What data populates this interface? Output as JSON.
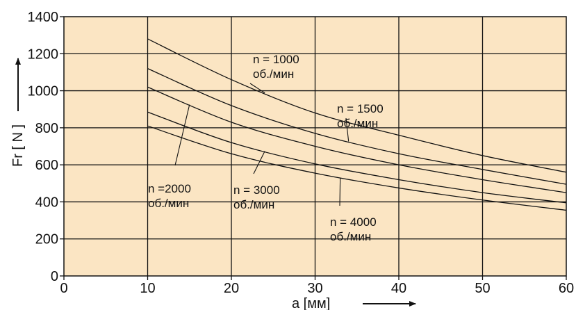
{
  "chart_data": {
    "type": "line",
    "xlabel": "a  [мм]",
    "ylabel": "Fr [ N ]",
    "xlim": [
      0,
      60
    ],
    "ylim": [
      0,
      1400
    ],
    "x_ticks": [
      "0",
      "10",
      "20",
      "30",
      "40",
      "50",
      "60"
    ],
    "y_ticks": [
      "0",
      "200",
      "400",
      "600",
      "800",
      "1000",
      "1200",
      "1400"
    ],
    "grid": true,
    "background_color": "#fbe5c3",
    "line_color": "#111111",
    "series": [
      {
        "name": "n = 1000",
        "x": [
          10,
          20,
          30,
          40,
          50,
          60
        ],
        "y": [
          1280,
          1060,
          880,
          760,
          650,
          560
        ]
      },
      {
        "name": "n = 1500",
        "x": [
          10,
          20,
          30,
          40,
          50,
          60
        ],
        "y": [
          1120,
          920,
          770,
          660,
          575,
          495
        ]
      },
      {
        "name": "n =2000",
        "x": [
          10,
          20,
          30,
          40,
          50,
          60
        ],
        "y": [
          1020,
          830,
          700,
          600,
          520,
          450
        ]
      },
      {
        "name": "n = 3000",
        "x": [
          10,
          20,
          30,
          40,
          50,
          60
        ],
        "y": [
          885,
          720,
          605,
          520,
          450,
          395
        ]
      },
      {
        "name": "n = 4000",
        "x": [
          10,
          20,
          30,
          40,
          50,
          60
        ],
        "y": [
          810,
          660,
          555,
          475,
          410,
          355
        ]
      }
    ],
    "annotations": [
      {
        "series": 0,
        "line1": "n = 1000",
        "line2": "об./мин"
      },
      {
        "series": 1,
        "line1": "n = 1500",
        "line2": "об./мин"
      },
      {
        "series": 2,
        "line1": "n =2000",
        "line2": "об./мин"
      },
      {
        "series": 3,
        "line1": "n = 3000",
        "line2": "об./мин"
      },
      {
        "series": 4,
        "line1": "n = 4000",
        "line2": "об./мин"
      }
    ]
  }
}
